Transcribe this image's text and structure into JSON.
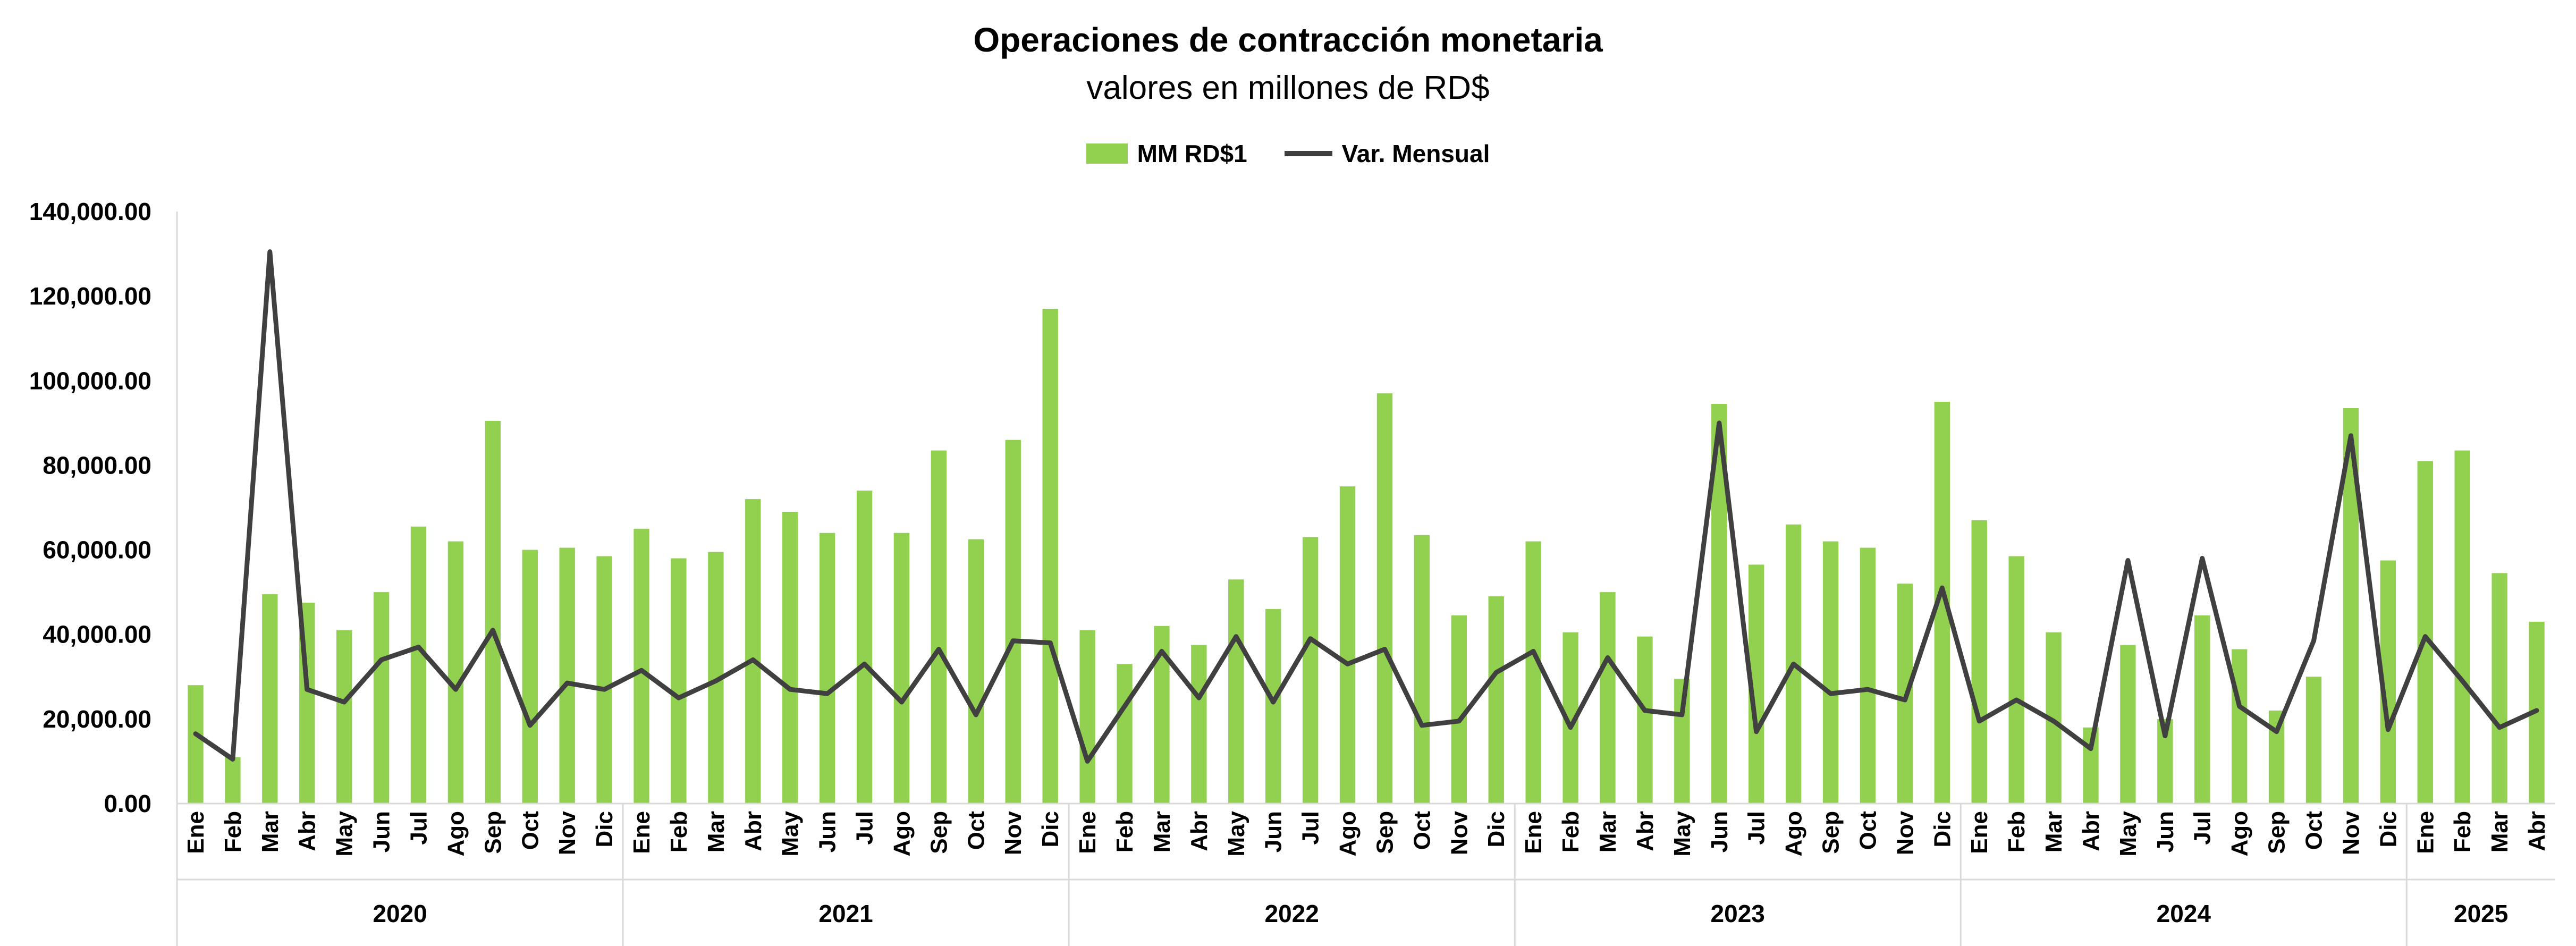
{
  "chart_data": {
    "type": "bar",
    "title": "Operaciones de contracción monetaria",
    "subtitle": "valores en millones de RD$",
    "legend": [
      "MM RD$1",
      "Var. Mensual"
    ],
    "legend_position": "top",
    "ylim": [
      0,
      140000
    ],
    "yticks": [
      "0.00",
      "20,000.00",
      "40,000.00",
      "60,000.00",
      "80,000.00",
      "100,000.00",
      "120,000.00",
      "140,000.00"
    ],
    "grid": false,
    "colors": {
      "bars": "#92D050",
      "line": "#404040"
    },
    "years": [
      {
        "label": "2020",
        "months": [
          "Ene",
          "Feb",
          "Mar",
          "Abr",
          "May",
          "Jun",
          "Jul",
          "Ago",
          "Sep",
          "Oct",
          "Nov",
          "Dic"
        ]
      },
      {
        "label": "2021",
        "months": [
          "Ene",
          "Feb",
          "Mar",
          "Abr",
          "May",
          "Jun",
          "Jul",
          "Ago",
          "Sep",
          "Oct",
          "Nov",
          "Dic"
        ]
      },
      {
        "label": "2022",
        "months": [
          "Ene",
          "Feb",
          "Mar",
          "Abr",
          "May",
          "Jun",
          "Jul",
          "Ago",
          "Sep",
          "Oct",
          "Nov",
          "Dic"
        ]
      },
      {
        "label": "2023",
        "months": [
          "Ene",
          "Feb",
          "Mar",
          "Abr",
          "May",
          "Jun",
          "Jul",
          "Ago",
          "Sep",
          "Oct",
          "Nov",
          "Dic"
        ]
      },
      {
        "label": "2024",
        "months": [
          "Ene",
          "Feb",
          "Mar",
          "Abr",
          "May",
          "Jun",
          "Jul",
          "Ago",
          "Sep",
          "Oct",
          "Nov",
          "Dic"
        ]
      },
      {
        "label": "2025",
        "months": [
          "Ene",
          "Feb",
          "Mar",
          "Abr"
        ]
      }
    ],
    "series": [
      {
        "name": "MM RD$1",
        "type": "bar",
        "values": [
          28000,
          11000,
          49500,
          47500,
          41000,
          50000,
          65500,
          62000,
          90500,
          60000,
          60500,
          58500,
          65000,
          58000,
          59500,
          72000,
          69000,
          64000,
          74000,
          64000,
          83500,
          62500,
          86000,
          117000,
          41000,
          33000,
          42000,
          37500,
          53000,
          46000,
          63000,
          75000,
          97000,
          63500,
          44500,
          49000,
          62000,
          40500,
          50000,
          39500,
          29500,
          94500,
          56500,
          66000,
          62000,
          60500,
          52000,
          95000,
          67000,
          58500,
          40500,
          18000,
          37500,
          20000,
          44500,
          36500,
          22000,
          30000,
          93500,
          57500,
          81000,
          83500,
          54500,
          43000
        ]
      },
      {
        "name": "Var. Mensual",
        "type": "line",
        "values": [
          16500,
          10500,
          130500,
          27000,
          24000,
          34000,
          37000,
          27000,
          41000,
          18500,
          28500,
          27000,
          31500,
          25000,
          29000,
          34000,
          27000,
          26000,
          33000,
          24000,
          36500,
          21000,
          38500,
          38000,
          10000,
          23000,
          36000,
          25000,
          39500,
          24000,
          39000,
          33000,
          36500,
          18500,
          19500,
          31000,
          36000,
          18000,
          34500,
          22000,
          21000,
          90000,
          17000,
          33000,
          26000,
          27000,
          24500,
          51000,
          19500,
          24500,
          19500,
          13000,
          57500,
          16000,
          58000,
          23000,
          17000,
          38500,
          87000,
          17500,
          39500,
          29000,
          18000,
          22000
        ]
      }
    ]
  }
}
